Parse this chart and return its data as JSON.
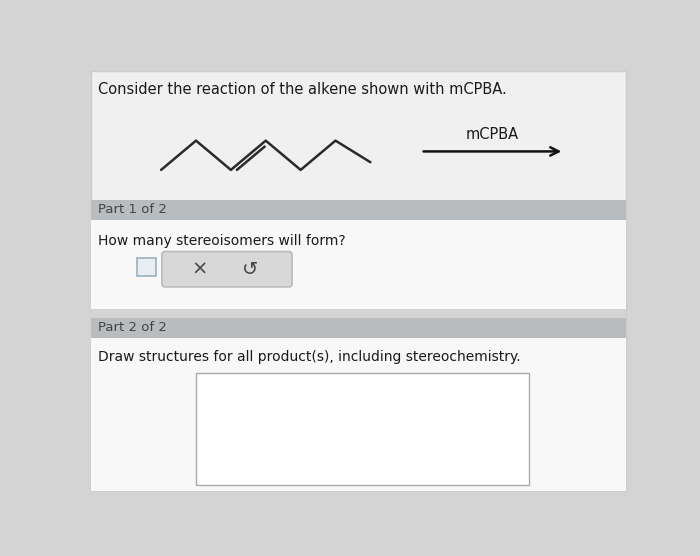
{
  "bg_color": "#d4d4d4",
  "panel_bg": "#f0f0f0",
  "white_bg": "#f8f8f8",
  "title_text": "Consider the reaction of the alkene shown with mCPBA.",
  "title_fontsize": 10.5,
  "mcpba_label": "mCPBA",
  "part1_label": "Part 1 of 2",
  "part2_label": "Part 2 of 2",
  "question1": "How many stereoisomers will form?",
  "question2": "Draw structures for all product(s), including stereochemistry.",
  "header_bar_color": "#b8bcbe",
  "input_box_color": "#ffffff",
  "button_bg": "#d8d8d8",
  "alkene_color": "#2a2a2a",
  "arrow_color": "#111111",
  "text_color": "#1a1a1a",
  "part_label_color": "#444444",
  "panel_border": "#cccccc",
  "checkbox_border": "#aaaaaa",
  "btn_border": "#bbbbbb",
  "draw_box_border": "#aaaaaa"
}
